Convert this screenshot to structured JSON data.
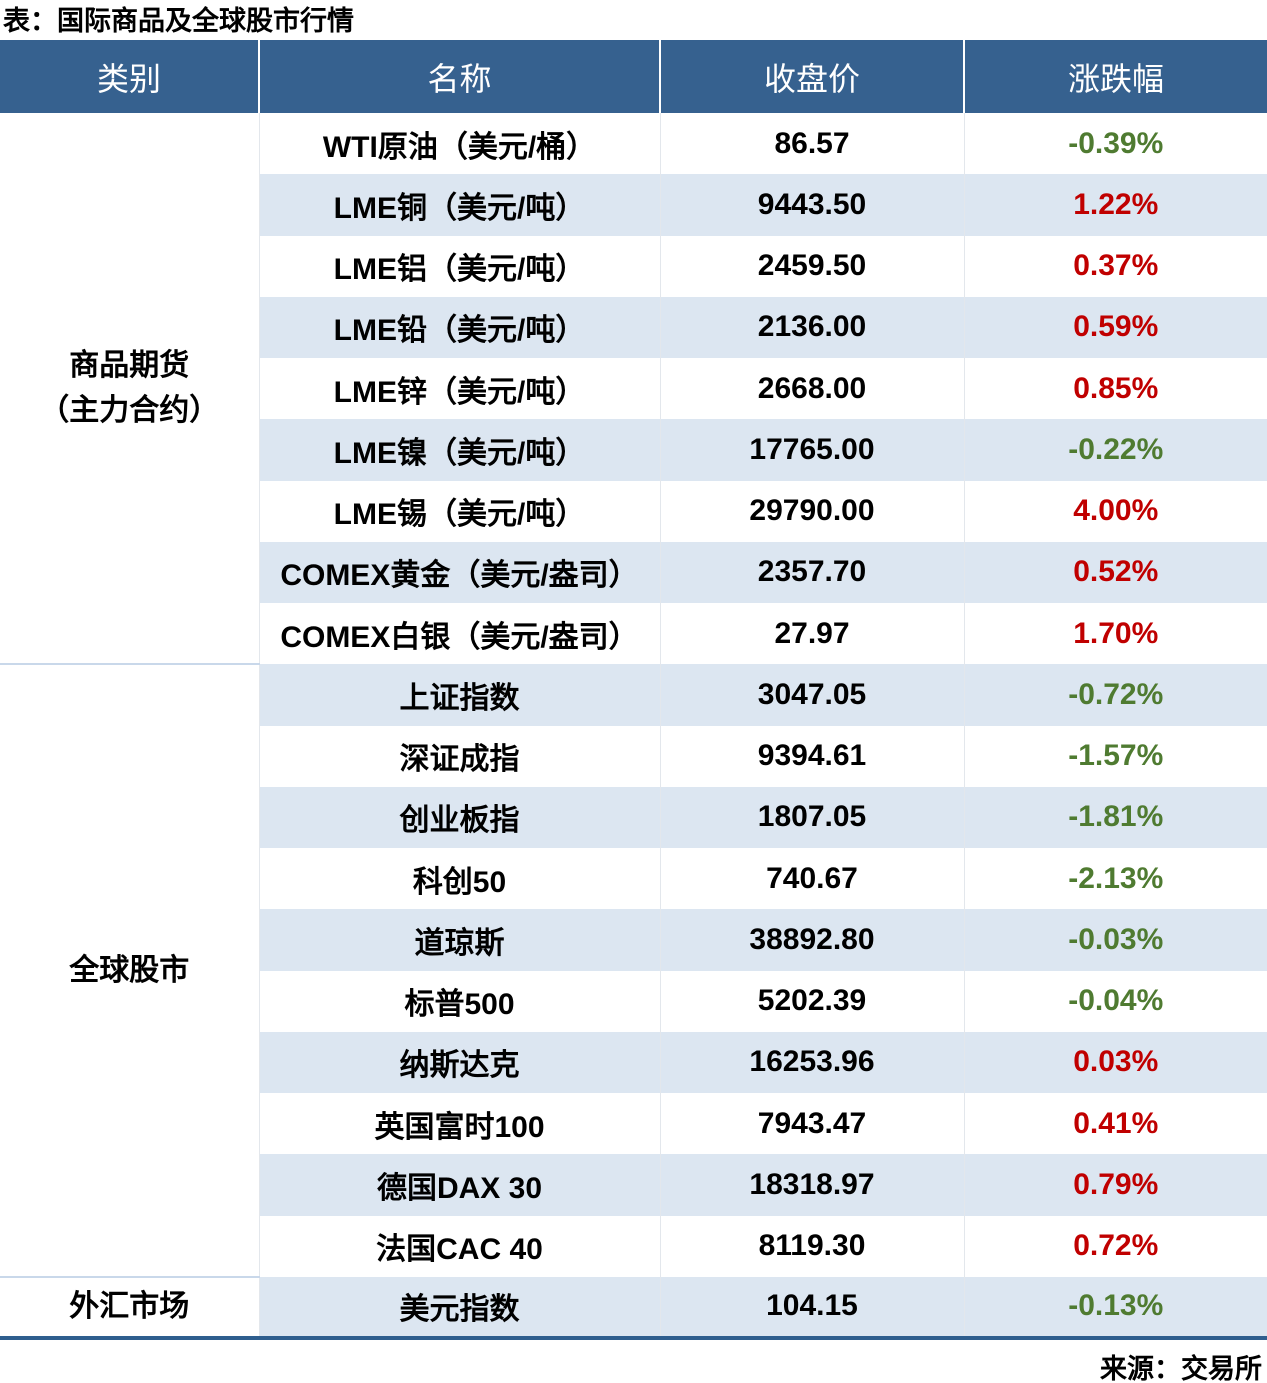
{
  "title": "表：国际商品及全球股市行情",
  "source": "来源：交易所",
  "colors": {
    "header_bg": "#36618F",
    "stripe": "#DCE6F1",
    "up": "#C00000",
    "down": "#4F7B31",
    "divider": "#C9D8EA",
    "bottom_border": "#2E5E8E"
  },
  "table": {
    "headers": [
      "类别",
      "名称",
      "收盘价",
      "涨跌幅"
    ],
    "sections": [
      {
        "category_lines": [
          "商品期货",
          "（主力合约）"
        ],
        "rows": [
          {
            "name": "WTI原油（美元/桶）",
            "close": "86.57",
            "change": "-0.39%",
            "direction": "down"
          },
          {
            "name": "LME铜（美元/吨）",
            "close": "9443.50",
            "change": "1.22%",
            "direction": "up"
          },
          {
            "name": "LME铝（美元/吨）",
            "close": "2459.50",
            "change": "0.37%",
            "direction": "up"
          },
          {
            "name": "LME铅（美元/吨）",
            "close": "2136.00",
            "change": "0.59%",
            "direction": "up"
          },
          {
            "name": "LME锌（美元/吨）",
            "close": "2668.00",
            "change": "0.85%",
            "direction": "up"
          },
          {
            "name": "LME镍（美元/吨）",
            "close": "17765.00",
            "change": "-0.22%",
            "direction": "down"
          },
          {
            "name": "LME锡（美元/吨）",
            "close": "29790.00",
            "change": "4.00%",
            "direction": "up"
          },
          {
            "name": "COMEX黄金（美元/盎司）",
            "close": "2357.70",
            "change": "0.52%",
            "direction": "up"
          },
          {
            "name": "COMEX白银（美元/盎司）",
            "close": "27.97",
            "change": "1.70%",
            "direction": "up"
          }
        ]
      },
      {
        "category_lines": [
          "全球股市"
        ],
        "rows": [
          {
            "name": "上证指数",
            "close": "3047.05",
            "change": "-0.72%",
            "direction": "down"
          },
          {
            "name": "深证成指",
            "close": "9394.61",
            "change": "-1.57%",
            "direction": "down"
          },
          {
            "name": "创业板指",
            "close": "1807.05",
            "change": "-1.81%",
            "direction": "down"
          },
          {
            "name": "科创50",
            "close": "740.67",
            "change": "-2.13%",
            "direction": "down"
          },
          {
            "name": "道琼斯",
            "close": "38892.80",
            "change": "-0.03%",
            "direction": "down"
          },
          {
            "name": "标普500",
            "close": "5202.39",
            "change": "-0.04%",
            "direction": "down"
          },
          {
            "name": "纳斯达克",
            "close": "16253.96",
            "change": "0.03%",
            "direction": "up"
          },
          {
            "name": "英国富时100",
            "close": "7943.47",
            "change": "0.41%",
            "direction": "up"
          },
          {
            "name": "德国DAX 30",
            "close": "18318.97",
            "change": "0.79%",
            "direction": "up"
          },
          {
            "name": "法国CAC 40",
            "close": "8119.30",
            "change": "0.72%",
            "direction": "up"
          }
        ]
      },
      {
        "category_lines": [
          "外汇市场"
        ],
        "rows": [
          {
            "name": "美元指数",
            "close": "104.15",
            "change": "-0.13%",
            "direction": "down"
          }
        ]
      }
    ]
  },
  "chart_data": {
    "type": "table",
    "title": "表：国际商品及全球股市行情",
    "columns": [
      "类别",
      "名称",
      "收盘价",
      "涨跌幅"
    ],
    "rows": [
      [
        "商品期货（主力合约）",
        "WTI原油（美元/桶）",
        86.57,
        "-0.39%"
      ],
      [
        "商品期货（主力合约）",
        "LME铜（美元/吨）",
        9443.5,
        "1.22%"
      ],
      [
        "商品期货（主力合约）",
        "LME铝（美元/吨）",
        2459.5,
        "0.37%"
      ],
      [
        "商品期货（主力合约）",
        "LME铅（美元/吨）",
        2136.0,
        "0.59%"
      ],
      [
        "商品期货（主力合约）",
        "LME锌（美元/吨）",
        2668.0,
        "0.85%"
      ],
      [
        "商品期货（主力合约）",
        "LME镍（美元/吨）",
        17765.0,
        "-0.22%"
      ],
      [
        "商品期货（主力合约）",
        "LME锡（美元/吨）",
        29790.0,
        "4.00%"
      ],
      [
        "商品期货（主力合约）",
        "COMEX黄金（美元/盎司）",
        2357.7,
        "0.52%"
      ],
      [
        "商品期货（主力合约）",
        "COMEX白银（美元/盎司）",
        27.97,
        "1.70%"
      ],
      [
        "全球股市",
        "上证指数",
        3047.05,
        "-0.72%"
      ],
      [
        "全球股市",
        "深证成指",
        9394.61,
        "-1.57%"
      ],
      [
        "全球股市",
        "创业板指",
        1807.05,
        "-1.81%"
      ],
      [
        "全球股市",
        "科创50",
        740.67,
        "-2.13%"
      ],
      [
        "全球股市",
        "道琼斯",
        38892.8,
        "-0.03%"
      ],
      [
        "全球股市",
        "标普500",
        5202.39,
        "-0.04%"
      ],
      [
        "全球股市",
        "纳斯达克",
        16253.96,
        "0.03%"
      ],
      [
        "全球股市",
        "英国富时100",
        7943.47,
        "0.41%"
      ],
      [
        "全球股市",
        "德国DAX 30",
        18318.97,
        "0.79%"
      ],
      [
        "全球股市",
        "法国CAC 40",
        8119.3,
        "0.72%"
      ],
      [
        "外汇市场",
        "美元指数",
        104.15,
        "-0.13%"
      ]
    ],
    "source": "来源：交易所",
    "layout_hints": {
      "positive_change_color": "#C00000",
      "negative_change_color": "#4F7B31",
      "striped_rows": true,
      "header_background": "#36618F"
    }
  }
}
